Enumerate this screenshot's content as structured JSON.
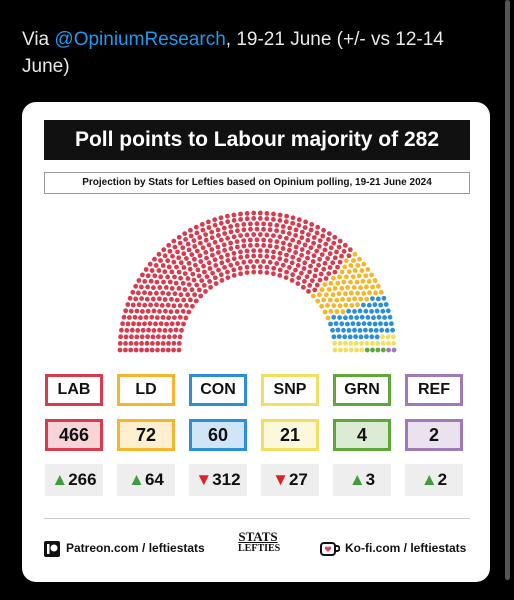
{
  "tweet": {
    "text_parts": [
      "Via ",
      "@OpiniumResearch",
      ", 19-21 June (+/- vs 12-14 June)"
    ]
  },
  "card": {
    "title": "Poll points to Labour majority of 282",
    "subtitle": "Projection by Stats for Lefties based on Opinium polling, 19-21 June 2024",
    "parties": [
      {
        "name": "LAB",
        "seats": 466,
        "change": "▲266",
        "color": "#d83a4e"
      },
      {
        "name": "LD",
        "seats": 72,
        "change": "▲64",
        "color": "#f5b62b"
      },
      {
        "name": "CON",
        "seats": 60,
        "change": "▼312",
        "color": "#2a8fd8"
      },
      {
        "name": "SNP",
        "seats": 21,
        "change": "▼27",
        "color": "#f2df5e"
      },
      {
        "name": "GRN",
        "seats": 4,
        "change": "▲3",
        "color": "#5ea83a"
      },
      {
        "name": "REF",
        "seats": 2,
        "change": "▲2",
        "color": "#a07ab8"
      }
    ],
    "footer": {
      "left": "Patreon.com / leftiestats",
      "logo_top": "STATS",
      "logo_bottom": "LEFTIES",
      "right": "Ko-fi.com / leftiestats"
    }
  }
}
